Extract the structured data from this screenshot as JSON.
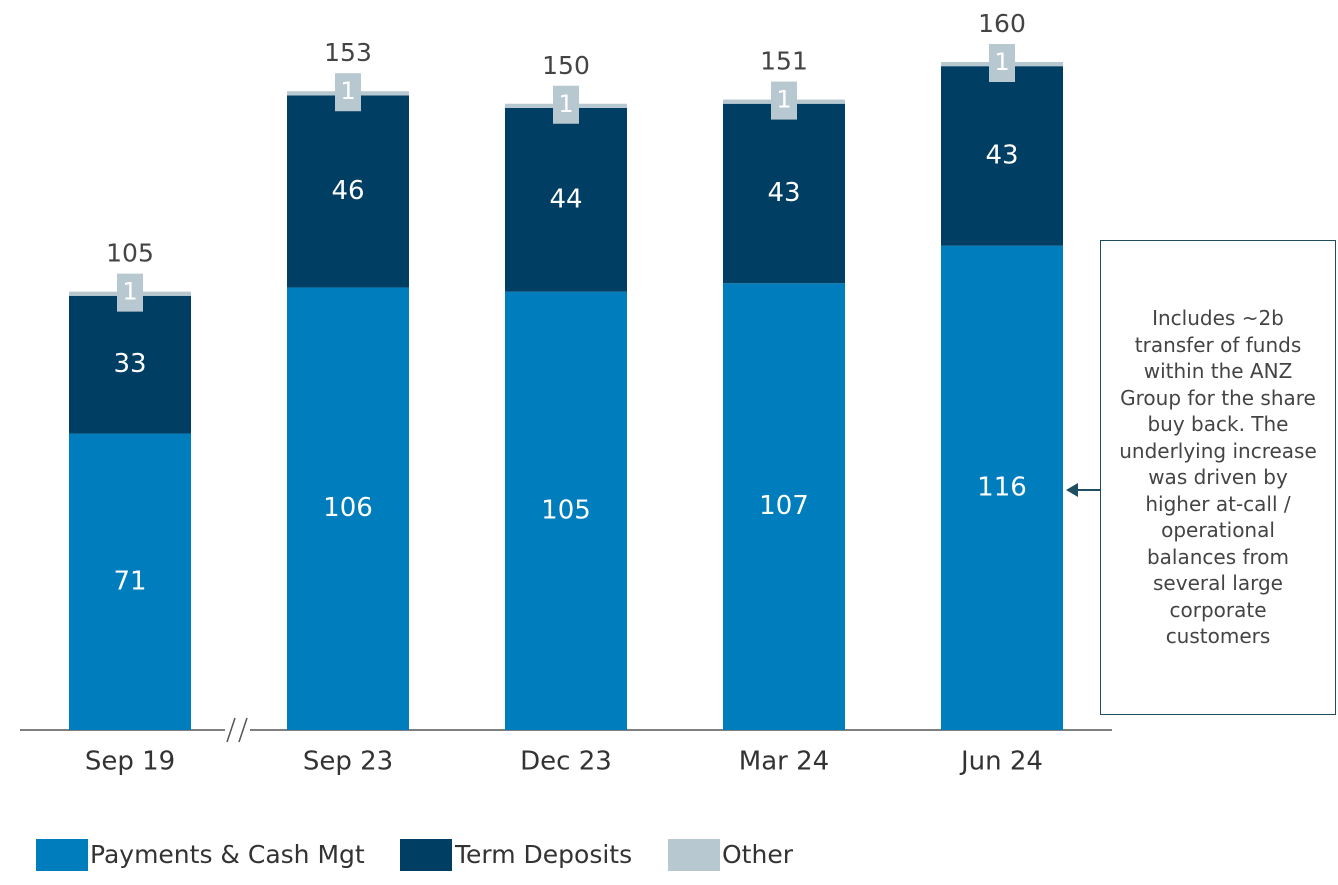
{
  "chart_data": {
    "type": "stacked_bar",
    "categories": [
      "Sep 19",
      "Sep 23",
      "Dec 23",
      "Mar 24",
      "Jun 24"
    ],
    "series": [
      {
        "name": "Payments & Cash Mgt",
        "color": "#007dbc",
        "values": [
          71,
          106,
          105,
          107,
          116
        ]
      },
      {
        "name": "Term Deposits",
        "color": "#003f63",
        "values": [
          33,
          46,
          44,
          43,
          43
        ]
      },
      {
        "name": "Other",
        "color": "#b8c8d0",
        "values": [
          1,
          1,
          1,
          1,
          1
        ]
      }
    ],
    "totals": [
      105,
      153,
      150,
      151,
      160
    ],
    "annotation": "Includes ~2b transfer of funds within the ANZ Group for the share buy back. The underlying increase was driven by higher at-call / operational balances from several large corporate customers"
  }
}
